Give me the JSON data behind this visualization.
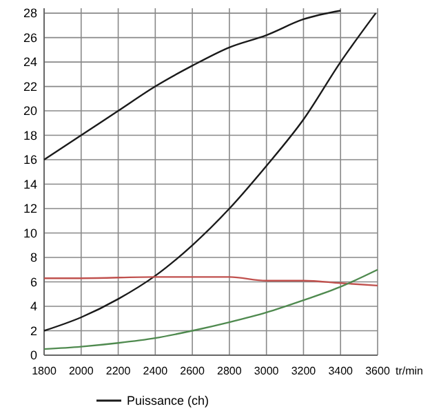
{
  "chart_data": {
    "type": "line",
    "xlabel": "tr/min",
    "xlim": [
      1800,
      3600
    ],
    "xticks": [
      1800,
      2000,
      2200,
      2400,
      2600,
      2800,
      3000,
      3200,
      3400,
      3600
    ],
    "ylim": [
      0,
      28.4
    ],
    "yticks": [
      0,
      2,
      4,
      6,
      8,
      10,
      12,
      14,
      16,
      18,
      20,
      22,
      24,
      26,
      28
    ],
    "grid": true,
    "legend": "bottom",
    "marker": "none",
    "series": [
      {
        "color": "#1a1a1a",
        "x": [
          1800,
          2000,
          2200,
          2400,
          2600,
          2800,
          3000,
          3200,
          3400
        ],
        "values": [
          16,
          18,
          20,
          22,
          23.7,
          25.2,
          26.2,
          27.5,
          28.2
        ]
      },
      {
        "name": "Puissance (ch)",
        "color": "#1a1a1a",
        "x": [
          1800,
          2000,
          2200,
          2400,
          2600,
          2800,
          3000,
          3200,
          3400,
          3590
        ],
        "values": [
          2,
          3.1,
          4.6,
          6.5,
          9,
          12,
          15.5,
          19.3,
          24,
          28
        ]
      },
      {
        "color": "#c0504d",
        "x": [
          1800,
          2000,
          2400,
          2800,
          3000,
          3200,
          3400,
          3600
        ],
        "values": [
          6.3,
          6.3,
          6.4,
          6.4,
          6.1,
          6.1,
          5.9,
          5.7
        ]
      },
      {
        "color": "#4f8a4f",
        "x": [
          1800,
          2000,
          2200,
          2400,
          2600,
          2800,
          3000,
          3200,
          3400,
          3600
        ],
        "values": [
          0.5,
          0.7,
          1,
          1.4,
          2,
          2.7,
          3.5,
          4.5,
          5.6,
          7
        ]
      }
    ]
  }
}
